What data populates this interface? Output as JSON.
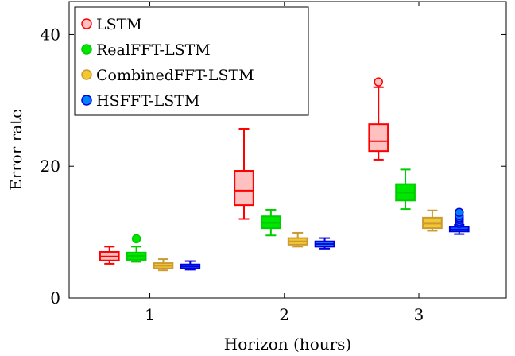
{
  "chart_data": {
    "type": "boxplot",
    "xlabel": "Horizon (hours)",
    "ylabel": "Error rate",
    "ylim": [
      0,
      45
    ],
    "xlim": [
      0.4,
      3.65
    ],
    "categories": [
      "1",
      "2",
      "3"
    ],
    "x_ticks": [
      1,
      2,
      3
    ],
    "y_ticks": [
      0,
      20,
      40
    ],
    "grid": false,
    "legend_position": "top-left",
    "series": [
      {
        "name": "LSTM",
        "stroke": "#ff0000",
        "fill": "#ffc0c0",
        "boxes": [
          {
            "category": "1",
            "whisker_low": 5.2,
            "q1": 5.7,
            "median": 6.3,
            "q3": 7.0,
            "whisker_high": 7.8,
            "outliers": []
          },
          {
            "category": "2",
            "whisker_low": 12.0,
            "q1": 14.1,
            "median": 16.3,
            "q3": 19.3,
            "whisker_high": 25.7,
            "outliers": []
          },
          {
            "category": "3",
            "whisker_low": 21.0,
            "q1": 22.3,
            "median": 23.8,
            "q3": 26.4,
            "whisker_high": 32.0,
            "outliers": [
              32.8
            ]
          }
        ]
      },
      {
        "name": "RealFFT-LSTM",
        "stroke": "#00cc00",
        "fill": "#00e600",
        "boxes": [
          {
            "category": "1",
            "whisker_low": 5.5,
            "q1": 5.8,
            "median": 6.4,
            "q3": 6.9,
            "whisker_high": 7.8,
            "outliers": [
              9.0
            ]
          },
          {
            "category": "2",
            "whisker_low": 9.5,
            "q1": 10.6,
            "median": 11.4,
            "q3": 12.4,
            "whisker_high": 13.4,
            "outliers": []
          },
          {
            "category": "3",
            "whisker_low": 13.5,
            "q1": 14.8,
            "median": 16.0,
            "q3": 17.3,
            "whisker_high": 19.5,
            "outliers": []
          }
        ]
      },
      {
        "name": "CombinedFFT-LSTM",
        "stroke": "#cc9933",
        "fill": "#f0c830",
        "boxes": [
          {
            "category": "1",
            "whisker_low": 4.2,
            "q1": 4.5,
            "median": 4.9,
            "q3": 5.3,
            "whisker_high": 5.9,
            "outliers": []
          },
          {
            "category": "2",
            "whisker_low": 7.8,
            "q1": 8.1,
            "median": 8.6,
            "q3": 9.1,
            "whisker_high": 9.9,
            "outliers": []
          },
          {
            "category": "3",
            "whisker_low": 10.2,
            "q1": 10.6,
            "median": 11.3,
            "q3": 12.2,
            "whisker_high": 13.3,
            "outliers": []
          }
        ]
      },
      {
        "name": "HSFFT-LSTM",
        "stroke": "#0000dd",
        "fill": "#0080ff",
        "boxes": [
          {
            "category": "1",
            "whisker_low": 4.3,
            "q1": 4.5,
            "median": 4.8,
            "q3": 5.1,
            "whisker_high": 5.6,
            "outliers": []
          },
          {
            "category": "2",
            "whisker_low": 7.5,
            "q1": 7.8,
            "median": 8.2,
            "q3": 8.6,
            "whisker_high": 9.1,
            "outliers": []
          },
          {
            "category": "3",
            "whisker_low": 9.7,
            "q1": 10.1,
            "median": 10.4,
            "q3": 10.8,
            "whisker_high": 11.1,
            "outliers": [
              11.3,
              11.6,
              11.9,
              12.2,
              12.5,
              13.0
            ]
          }
        ]
      }
    ]
  }
}
